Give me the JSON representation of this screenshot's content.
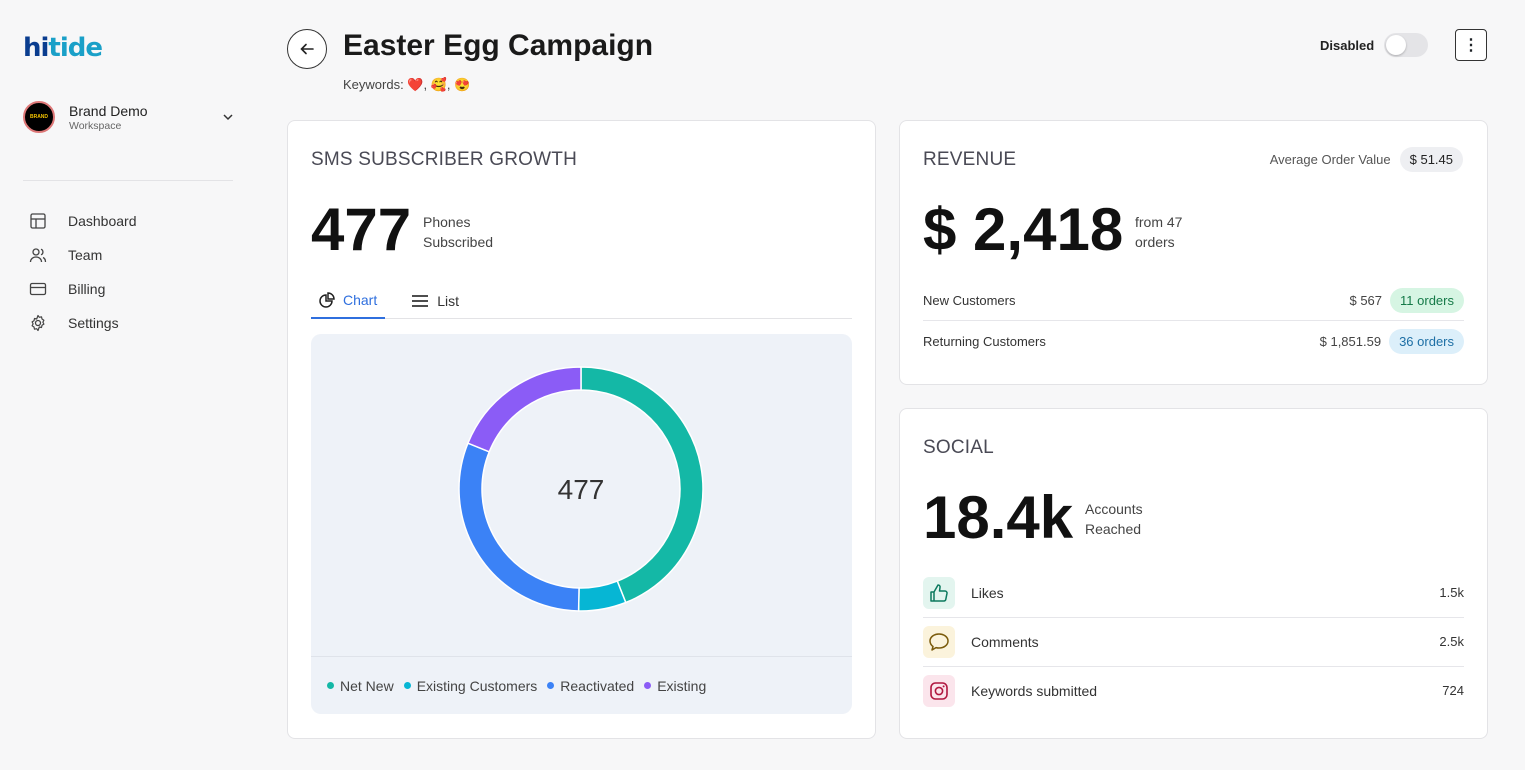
{
  "sidebar": {
    "logo": {
      "part1": "hi",
      "part2": "tide"
    },
    "workspace": {
      "name": "Brand Demo",
      "sub": "Workspace",
      "avatar_text": "BRAND"
    },
    "items": [
      {
        "label": "Dashboard",
        "icon": "layout-icon"
      },
      {
        "label": "Team",
        "icon": "users-icon"
      },
      {
        "label": "Billing",
        "icon": "credit-card-icon"
      },
      {
        "label": "Settings",
        "icon": "gear-icon"
      }
    ]
  },
  "header": {
    "title": "Easter Egg Campaign",
    "keywords_label": "Keywords:",
    "keywords": "❤️, 🥰, 😍",
    "toggle_label": "Disabled",
    "toggle_on": false
  },
  "sms": {
    "title": "SMS SUBSCRIBER GROWTH",
    "total": "477",
    "total_sub1": "Phones",
    "total_sub2": "Subscribed",
    "tabs": [
      "Chart",
      "List"
    ],
    "active_tab": "Chart"
  },
  "chart_data": {
    "type": "pie",
    "center_label": "477",
    "series": [
      {
        "name": "Net New",
        "value": 210,
        "color": "#14b8a6"
      },
      {
        "name": "Existing Customers",
        "value": 30,
        "color": "#06b6d4"
      },
      {
        "name": "Reactivated",
        "value": 147,
        "color": "#3b82f6"
      },
      {
        "name": "Existing",
        "value": 90,
        "color": "#8b5cf6"
      }
    ],
    "legend_position": "bottom"
  },
  "revenue": {
    "title": "REVENUE",
    "aov_label": "Average Order Value",
    "aov_value": "$ 51.45",
    "total": "$ 2,418",
    "total_sub1": "from 47",
    "total_sub2": "orders",
    "rows": [
      {
        "label": "New Customers",
        "value": "$ 567",
        "orders": "11 orders"
      },
      {
        "label": "Returning Customers",
        "value": "$ 1,851.59",
        "orders": "36 orders"
      }
    ]
  },
  "social": {
    "title": "SOCIAL",
    "total": "18.4k",
    "total_sub1": "Accounts",
    "total_sub2": "Reached",
    "rows": [
      {
        "label": "Likes",
        "value": "1.5k",
        "icon": "thumbs-up-icon"
      },
      {
        "label": "Comments",
        "value": "2.5k",
        "icon": "comment-icon"
      },
      {
        "label": "Keywords submitted",
        "value": "724",
        "icon": "instagram-icon"
      }
    ]
  }
}
